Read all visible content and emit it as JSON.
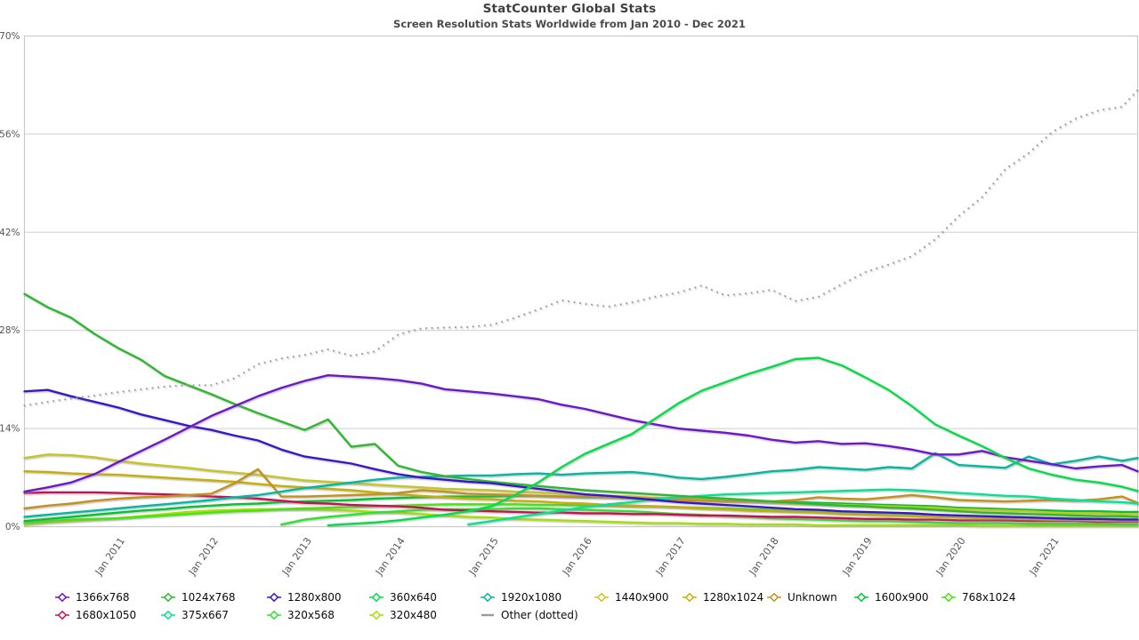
{
  "header": {
    "title": "StatCounter Global Stats",
    "subtitle": "Screen Resolution Stats Worldwide from Jan 2010 - Dec 2021"
  },
  "chart_data": {
    "type": "line",
    "title": "StatCounter Global Stats",
    "subtitle": "Screen Resolution Stats Worldwide from Jan 2010 - Dec 2021",
    "grid": "horizontal",
    "legend_position": "bottom",
    "y_axis": {
      "min": 0,
      "max": 70,
      "unit": "%",
      "ticks": [
        {
          "label": "0%",
          "value": 0
        },
        {
          "label": "14%",
          "value": 14
        },
        {
          "label": "28%",
          "value": 28
        },
        {
          "label": "42%",
          "value": 42
        },
        {
          "label": "56%",
          "value": 56
        },
        {
          "label": "70%",
          "value": 70
        }
      ]
    },
    "x_axis": {
      "start": "Jan 2010",
      "end": "Dec 2021",
      "ticks": [
        {
          "label": "Jan 2011",
          "month": 12
        },
        {
          "label": "Jan 2012",
          "month": 24
        },
        {
          "label": "Jan 2013",
          "month": 36
        },
        {
          "label": "Jan 2014",
          "month": 48
        },
        {
          "label": "Jan 2015",
          "month": 60
        },
        {
          "label": "Jan 2016",
          "month": 72
        },
        {
          "label": "Jan 2017",
          "month": 84
        },
        {
          "label": "Jan 2018",
          "month": 96
        },
        {
          "label": "Jan 2019",
          "month": 108
        },
        {
          "label": "Jan 2020",
          "month": 120
        },
        {
          "label": "Jan 2021",
          "month": 132
        }
      ]
    },
    "x_months": [
      0,
      3,
      6,
      9,
      12,
      15,
      18,
      21,
      24,
      27,
      30,
      33,
      36,
      39,
      42,
      45,
      48,
      51,
      54,
      57,
      60,
      63,
      66,
      69,
      72,
      75,
      78,
      81,
      84,
      87,
      90,
      93,
      96,
      99,
      102,
      105,
      108,
      111,
      114,
      117,
      120,
      123,
      126,
      129,
      132,
      135,
      138,
      141,
      143
    ],
    "legend_rows": [
      [
        0,
        1,
        2,
        3,
        4,
        5,
        6,
        7,
        8,
        9
      ],
      [
        10,
        11,
        12,
        13,
        14
      ]
    ],
    "draw_order": [
      13,
      12,
      9,
      8,
      10,
      6,
      5,
      7,
      4,
      11,
      1,
      2,
      0,
      3,
      14
    ],
    "series": [
      {
        "name": "1366x768",
        "color": "#6e12cc",
        "style": "solid",
        "values": [
          5.0,
          5.6,
          6.3,
          7.5,
          9.2,
          10.8,
          12.4,
          14.1,
          15.8,
          17.2,
          18.6,
          19.8,
          20.8,
          21.6,
          21.4,
          21.2,
          20.9,
          20.4,
          19.6,
          19.3,
          19.0,
          18.6,
          18.2,
          17.4,
          16.8,
          16.0,
          15.2,
          14.6,
          14.0,
          13.7,
          13.4,
          13.0,
          12.4,
          12.0,
          12.2,
          11.8,
          11.9,
          11.5,
          11.0,
          10.3,
          10.3,
          10.8,
          9.9,
          9.4,
          8.9,
          8.3,
          8.6,
          8.8,
          7.9
        ]
      },
      {
        "name": "1024x768",
        "color": "#2db82d",
        "style": "solid",
        "values": [
          33.2,
          31.3,
          29.8,
          27.5,
          25.5,
          23.8,
          21.5,
          20.2,
          18.9,
          17.5,
          16.2,
          15.0,
          13.8,
          15.3,
          11.4,
          11.8,
          8.7,
          7.8,
          7.2,
          6.8,
          6.4,
          6.1,
          5.8,
          5.5,
          5.2,
          5.0,
          4.8,
          4.6,
          4.4,
          4.2,
          4.0,
          3.8,
          3.6,
          3.4,
          3.2,
          3.0,
          2.9,
          2.7,
          2.6,
          2.4,
          2.2,
          2.0,
          1.9,
          1.8,
          1.7,
          1.6,
          1.5,
          1.5,
          1.4
        ]
      },
      {
        "name": "1280x800",
        "color": "#3b12c9",
        "style": "solid",
        "values": [
          19.3,
          19.5,
          18.6,
          17.8,
          17.0,
          16.0,
          15.2,
          14.4,
          13.8,
          13.0,
          12.3,
          11.0,
          10.0,
          9.5,
          9.0,
          8.2,
          7.5,
          7.0,
          6.7,
          6.4,
          6.2,
          5.8,
          5.4,
          5.0,
          4.6,
          4.4,
          4.1,
          3.8,
          3.5,
          3.3,
          3.1,
          2.9,
          2.7,
          2.5,
          2.4,
          2.2,
          2.1,
          2.0,
          1.9,
          1.7,
          1.6,
          1.5,
          1.4,
          1.3,
          1.2,
          1.1,
          1.1,
          1.0,
          1.0
        ]
      },
      {
        "name": "360x640",
        "color": "#00dd4c",
        "style": "solid",
        "values": [
          null,
          null,
          null,
          null,
          null,
          null,
          null,
          null,
          null,
          null,
          null,
          null,
          null,
          0.2,
          0.4,
          0.6,
          0.9,
          1.3,
          1.7,
          2.2,
          2.9,
          4.5,
          6.3,
          8.5,
          10.4,
          11.8,
          13.2,
          15.4,
          17.6,
          19.4,
          20.6,
          21.8,
          22.8,
          23.9,
          24.1,
          23.0,
          21.3,
          19.5,
          17.2,
          14.6,
          13.0,
          11.5,
          9.8,
          8.3,
          7.4,
          6.7,
          6.3,
          5.7,
          5.1
        ]
      },
      {
        "name": "1920x1080",
        "color": "#00b9a2",
        "style": "solid",
        "values": [
          1.4,
          1.7,
          2.0,
          2.3,
          2.6,
          2.9,
          3.2,
          3.5,
          3.8,
          4.2,
          4.5,
          5.0,
          5.5,
          5.9,
          6.3,
          6.7,
          7.0,
          7.1,
          7.2,
          7.3,
          7.3,
          7.5,
          7.6,
          7.4,
          7.6,
          7.7,
          7.8,
          7.5,
          7.0,
          6.8,
          7.1,
          7.5,
          7.9,
          8.1,
          8.5,
          8.3,
          8.1,
          8.5,
          8.3,
          10.5,
          8.8,
          8.6,
          8.4,
          10.0,
          8.9,
          9.4,
          10.0,
          9.4,
          9.8
        ]
      },
      {
        "name": "1440x900",
        "color": "#c6c622",
        "style": "solid",
        "values": [
          9.8,
          10.3,
          10.2,
          9.9,
          9.4,
          9.0,
          8.7,
          8.4,
          8.0,
          7.7,
          7.4,
          7.0,
          6.6,
          6.4,
          6.2,
          6.0,
          5.8,
          5.6,
          5.4,
          5.3,
          5.2,
          5.0,
          4.9,
          4.7,
          4.6,
          4.4,
          4.3,
          4.1,
          4.0,
          3.9,
          3.7,
          3.6,
          3.4,
          3.3,
          3.2,
          3.1,
          3.0,
          2.9,
          2.8,
          2.7,
          2.5,
          2.4,
          2.3,
          2.2,
          2.0,
          1.9,
          1.9,
          1.8,
          1.8
        ]
      },
      {
        "name": "1280x1024",
        "color": "#c5b000",
        "style": "solid",
        "values": [
          7.9,
          7.8,
          7.6,
          7.5,
          7.4,
          7.2,
          7.0,
          6.8,
          6.6,
          6.4,
          6.1,
          5.8,
          5.6,
          5.4,
          5.2,
          4.9,
          4.6,
          4.4,
          4.2,
          4.0,
          3.9,
          3.7,
          3.6,
          3.4,
          3.3,
          3.1,
          3.0,
          2.9,
          2.8,
          2.6,
          2.5,
          2.3,
          2.2,
          2.1,
          2.0,
          1.8,
          1.7,
          1.6,
          1.5,
          1.4,
          1.3,
          1.2,
          1.2,
          1.1,
          1.0,
          1.0,
          0.9,
          0.9,
          0.9
        ]
      },
      {
        "name": "Unknown",
        "color": "#c4921c",
        "style": "solid",
        "values": [
          2.6,
          3.0,
          3.3,
          3.7,
          4.0,
          4.2,
          4.3,
          4.5,
          4.7,
          6.2,
          8.2,
          4.3,
          4.3,
          4.4,
          4.5,
          4.6,
          4.8,
          5.2,
          5.0,
          4.7,
          4.6,
          4.5,
          4.4,
          4.3,
          4.3,
          4.2,
          4.1,
          4.0,
          3.8,
          3.7,
          3.6,
          3.6,
          3.6,
          3.8,
          4.2,
          4.0,
          3.9,
          4.2,
          4.5,
          4.2,
          3.8,
          3.7,
          3.6,
          3.7,
          3.8,
          3.7,
          3.9,
          4.3,
          3.4
        ]
      },
      {
        "name": "1600x900",
        "color": "#00c432",
        "style": "solid",
        "values": [
          0.8,
          1.1,
          1.4,
          1.7,
          2.0,
          2.3,
          2.5,
          2.8,
          3.0,
          3.2,
          3.3,
          3.5,
          3.6,
          3.7,
          3.8,
          4.0,
          4.1,
          4.2,
          4.3,
          4.3,
          4.3,
          4.4,
          4.4,
          4.3,
          4.2,
          4.2,
          4.1,
          4.1,
          4.0,
          3.9,
          3.8,
          3.7,
          3.6,
          3.5,
          3.4,
          3.3,
          3.2,
          3.1,
          3.0,
          2.9,
          2.7,
          2.6,
          2.5,
          2.4,
          2.3,
          2.2,
          2.2,
          2.1,
          2.1
        ]
      },
      {
        "name": "768x1024",
        "color": "#44e60c",
        "style": "solid",
        "values": [
          0.6,
          0.8,
          1.0,
          1.1,
          1.2,
          1.4,
          1.6,
          1.8,
          2.0,
          2.2,
          2.3,
          2.5,
          2.6,
          2.7,
          2.8,
          2.9,
          3.0,
          3.1,
          3.2,
          3.2,
          3.2,
          3.2,
          3.1,
          3.1,
          3.0,
          3.0,
          2.9,
          2.9,
          2.8,
          2.7,
          2.6,
          2.5,
          2.4,
          2.3,
          2.2,
          2.1,
          2.0,
          1.9,
          1.8,
          1.7,
          1.6,
          1.5,
          1.4,
          1.3,
          1.2,
          1.2,
          1.1,
          1.1,
          1.0
        ]
      },
      {
        "name": "1680x1050",
        "color": "#cc1054",
        "style": "solid",
        "values": [
          4.8,
          4.9,
          4.9,
          4.9,
          4.8,
          4.7,
          4.6,
          4.5,
          4.3,
          4.2,
          4.0,
          3.7,
          3.4,
          3.3,
          3.1,
          3.0,
          2.9,
          2.7,
          2.4,
          2.3,
          2.2,
          2.1,
          2.0,
          2.0,
          1.9,
          1.9,
          1.8,
          1.8,
          1.7,
          1.6,
          1.6,
          1.5,
          1.4,
          1.4,
          1.3,
          1.2,
          1.1,
          1.1,
          1.0,
          1.0,
          0.9,
          0.9,
          0.9,
          0.8,
          0.8,
          0.8,
          0.7,
          0.7,
          0.7
        ]
      },
      {
        "name": "375x667",
        "color": "#00e591",
        "style": "solid",
        "values": [
          null,
          null,
          null,
          null,
          null,
          null,
          null,
          null,
          null,
          null,
          null,
          null,
          null,
          null,
          null,
          null,
          null,
          null,
          null,
          0.3,
          0.8,
          1.3,
          1.8,
          2.3,
          2.8,
          3.2,
          3.5,
          3.9,
          4.2,
          4.4,
          4.6,
          4.7,
          4.8,
          4.9,
          5.0,
          5.1,
          5.2,
          5.3,
          5.2,
          5.0,
          4.8,
          4.6,
          4.4,
          4.3,
          4.0,
          3.8,
          3.6,
          3.5,
          3.3
        ]
      },
      {
        "name": "320x568",
        "color": "#2ee22e",
        "style": "solid",
        "values": [
          null,
          null,
          null,
          null,
          null,
          null,
          null,
          null,
          null,
          null,
          null,
          0.3,
          1.0,
          1.4,
          1.7,
          2.0,
          2.2,
          2.4,
          2.5,
          2.5,
          2.5,
          2.6,
          2.6,
          2.5,
          2.4,
          2.3,
          2.2,
          2.0,
          1.8,
          1.7,
          1.5,
          1.4,
          1.2,
          1.1,
          1.0,
          0.9,
          0.8,
          0.8,
          0.7,
          0.6,
          0.5,
          0.5,
          0.5,
          0.4,
          0.4,
          0.4,
          0.4,
          0.3,
          0.3
        ]
      },
      {
        "name": "320x480",
        "color": "#a5e005",
        "style": "solid",
        "values": [
          0.3,
          0.6,
          0.8,
          1.0,
          1.2,
          1.5,
          1.8,
          2.1,
          2.3,
          2.4,
          2.5,
          2.5,
          2.5,
          2.4,
          2.3,
          2.1,
          2.0,
          1.8,
          1.6,
          1.4,
          1.3,
          1.1,
          1.0,
          0.9,
          0.8,
          0.7,
          0.6,
          0.5,
          0.5,
          0.4,
          0.4,
          0.3,
          0.3,
          0.3,
          0.2,
          0.2,
          0.2,
          0.2,
          0.2,
          0.2,
          0.2,
          0.1,
          0.1,
          0.1,
          0.1,
          0.1,
          0.1,
          0.1,
          0.1
        ]
      },
      {
        "name": "Other",
        "legend_label": "Other (dotted)",
        "color": "#9a9a9a",
        "style": "dotted",
        "values": [
          17.3,
          17.8,
          18.3,
          18.7,
          19.2,
          19.6,
          20.0,
          20.2,
          20.2,
          21.2,
          23.2,
          24.0,
          24.5,
          25.3,
          24.4,
          25.0,
          27.4,
          28.3,
          28.4,
          28.5,
          28.8,
          29.8,
          31.0,
          32.3,
          31.8,
          31.4,
          32.0,
          32.8,
          33.4,
          34.4,
          33.0,
          33.3,
          33.8,
          32.2,
          32.8,
          34.6,
          36.3,
          37.4,
          38.6,
          41.0,
          44.3,
          47.0,
          51.0,
          53.3,
          56.3,
          58.2,
          59.4,
          59.9,
          62.3
        ]
      }
    ]
  }
}
